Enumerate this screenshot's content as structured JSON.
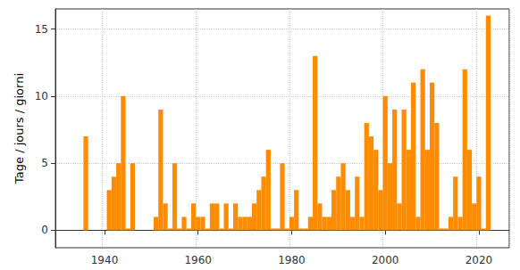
{
  "chart_data": {
    "type": "bar",
    "y_label": "Tage / jours / giorni",
    "categories": [
      null,
      null,
      null,
      null,
      null,
      null,
      null,
      null,
      null,
      null,
      "1940",
      null,
      null,
      null,
      null,
      null,
      null,
      null,
      null,
      null,
      null,
      null,
      null,
      null,
      null,
      null,
      null,
      null,
      null,
      null,
      "1960",
      null,
      null,
      null,
      null,
      null,
      null,
      null,
      null,
      null,
      null,
      null,
      null,
      null,
      null,
      null,
      null,
      null,
      null,
      null,
      "1980",
      null,
      null,
      null,
      null,
      null,
      null,
      null,
      null,
      null,
      null,
      null,
      null,
      null,
      null,
      null,
      null,
      null,
      null,
      null,
      "2000",
      null,
      null,
      null,
      null,
      null,
      null,
      null,
      null,
      null,
      null,
      null,
      null,
      null,
      null,
      null,
      null,
      null,
      null,
      null,
      "2020",
      null,
      null,
      null,
      null,
      null,
      null
    ],
    "values": [
      null,
      null,
      null,
      null,
      null,
      null,
      7,
      null,
      null,
      null,
      null,
      3,
      4,
      5,
      10,
      0,
      5,
      null,
      null,
      null,
      null,
      1,
      9,
      2,
      0,
      5,
      0,
      1,
      0,
      2,
      1,
      1,
      0,
      2,
      2,
      0,
      2,
      0,
      2,
      1,
      1,
      1,
      2,
      3,
      4,
      6,
      0,
      0,
      5,
      0,
      1,
      3,
      0,
      0,
      1,
      13,
      2,
      1,
      1,
      3,
      4,
      5,
      3,
      1,
      4,
      1,
      8,
      7,
      6,
      3,
      10,
      5,
      9,
      2,
      9,
      6,
      11,
      1,
      12,
      6,
      11,
      8,
      0,
      0,
      1,
      4,
      1,
      12,
      6,
      2,
      4,
      0,
      16,
      null,
      null,
      null,
      null
    ],
    "color": "#ff8c00",
    "ylim": [
      -1.3,
      16.5
    ],
    "yticks": [
      0,
      5,
      10,
      15
    ],
    "grid": true
  }
}
